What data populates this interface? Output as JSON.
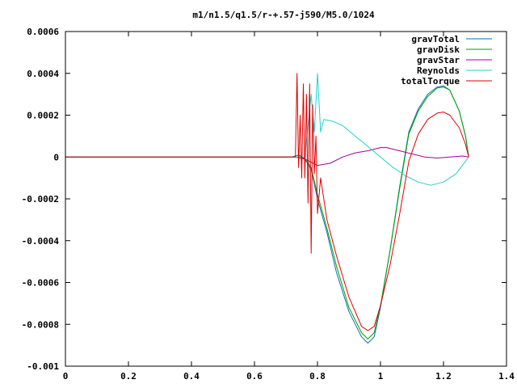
{
  "chart_data": {
    "type": "line",
    "title": "m1/n1.5/q1.5/r-+.57-j590/M5.0/1024",
    "xlabel": "",
    "ylabel": "",
    "xlim": [
      0,
      1.4
    ],
    "ylim": [
      -0.001,
      0.0006
    ],
    "grid": false,
    "legend_position": "top-right",
    "x_ticks": [
      "0",
      "0.2",
      "0.4",
      "0.6",
      "0.8",
      "1",
      "1.2",
      "1.4"
    ],
    "y_ticks": [
      "0.0006",
      "0.0004",
      "0.0002",
      "0",
      "-0.0002",
      "-0.0004",
      "-0.0006",
      "-0.0008",
      "-0.001"
    ],
    "series": [
      {
        "name": "gravTotal",
        "color": "#0072bd",
        "points": [
          [
            0,
            0
          ],
          [
            0.72,
            0
          ],
          [
            0.74,
            1e-05
          ],
          [
            0.76,
            -1e-05
          ],
          [
            0.78,
            -6e-05
          ],
          [
            0.8,
            -0.0002
          ],
          [
            0.83,
            -0.00036
          ],
          [
            0.86,
            -0.00055
          ],
          [
            0.9,
            -0.00074
          ],
          [
            0.94,
            -0.00086
          ],
          [
            0.96,
            -0.00089
          ],
          [
            0.98,
            -0.00086
          ],
          [
            1.0,
            -0.00072
          ],
          [
            1.03,
            -0.00045
          ],
          [
            1.06,
            -0.00015
          ],
          [
            1.09,
            0.00012
          ],
          [
            1.12,
            0.00023
          ],
          [
            1.15,
            0.0003
          ],
          [
            1.18,
            0.000335
          ],
          [
            1.2,
            0.00034
          ],
          [
            1.22,
            0.00032
          ],
          [
            1.25,
            0.00022
          ],
          [
            1.27,
            0.0001
          ],
          [
            1.28,
            0
          ]
        ]
      },
      {
        "name": "gravDisk",
        "color": "#00a000",
        "points": [
          [
            0,
            0
          ],
          [
            0.72,
            0
          ],
          [
            0.74,
            1e-05
          ],
          [
            0.76,
            -1e-05
          ],
          [
            0.78,
            -5e-05
          ],
          [
            0.8,
            -0.00018
          ],
          [
            0.83,
            -0.00034
          ],
          [
            0.86,
            -0.00052
          ],
          [
            0.9,
            -0.00072
          ],
          [
            0.94,
            -0.00084
          ],
          [
            0.96,
            -0.00087
          ],
          [
            0.98,
            -0.00084
          ],
          [
            1.0,
            -0.00071
          ],
          [
            1.03,
            -0.00045
          ],
          [
            1.06,
            -0.00016
          ],
          [
            1.09,
            0.00011
          ],
          [
            1.12,
            0.00022
          ],
          [
            1.15,
            0.00029
          ],
          [
            1.18,
            0.00033
          ],
          [
            1.2,
            0.000335
          ],
          [
            1.22,
            0.00032
          ],
          [
            1.25,
            0.00022
          ],
          [
            1.27,
            0.0001
          ],
          [
            1.28,
            0
          ]
        ]
      },
      {
        "name": "gravStar",
        "color": "#a000a0",
        "points": [
          [
            0,
            0
          ],
          [
            0.73,
            0
          ],
          [
            0.76,
            -1e-05
          ],
          [
            0.8,
            -4e-05
          ],
          [
            0.84,
            -3e-05
          ],
          [
            0.88,
            0
          ],
          [
            0.92,
            2e-05
          ],
          [
            0.96,
            3e-05
          ],
          [
            1.0,
            4.5e-05
          ],
          [
            1.02,
            4.5e-05
          ],
          [
            1.06,
            3e-05
          ],
          [
            1.1,
            1.5e-05
          ],
          [
            1.14,
            0
          ],
          [
            1.18,
            -5e-06
          ],
          [
            1.22,
            0
          ],
          [
            1.26,
            5e-06
          ],
          [
            1.28,
            0
          ]
        ]
      },
      {
        "name": "Reynolds",
        "color": "#20d0d0",
        "points": [
          [
            0,
            0
          ],
          [
            0.76,
            0
          ],
          [
            0.78,
            0.0003
          ],
          [
            0.79,
            0.00012
          ],
          [
            0.8,
            0.0004
          ],
          [
            0.81,
            0.00012
          ],
          [
            0.82,
            0.00018
          ],
          [
            0.85,
            0.00017
          ],
          [
            0.88,
            0.00015
          ],
          [
            0.92,
            0.0001
          ],
          [
            0.96,
            5e-05
          ],
          [
            1.0,
            0
          ],
          [
            1.04,
            -5e-05
          ],
          [
            1.08,
            -9e-05
          ],
          [
            1.12,
            -0.00012
          ],
          [
            1.16,
            -0.000135
          ],
          [
            1.2,
            -0.00012
          ],
          [
            1.24,
            -8e-05
          ],
          [
            1.27,
            -2e-05
          ],
          [
            1.28,
            0
          ]
        ]
      },
      {
        "name": "totalTorque",
        "color": "#e00000",
        "points": [
          [
            0,
            0
          ],
          [
            0.73,
            0
          ],
          [
            0.735,
            0.0004
          ],
          [
            0.74,
            -5e-05
          ],
          [
            0.745,
            0.0002
          ],
          [
            0.75,
            -0.0001
          ],
          [
            0.755,
            0.00035
          ],
          [
            0.76,
            -0.0001
          ],
          [
            0.765,
            0.0003
          ],
          [
            0.77,
            -0.00022
          ],
          [
            0.775,
            0.00035
          ],
          [
            0.78,
            -0.00046
          ],
          [
            0.785,
            0.00025
          ],
          [
            0.79,
            -8e-05
          ],
          [
            0.795,
            0.0001
          ],
          [
            0.8,
            -0.00027
          ],
          [
            0.81,
            -0.0001
          ],
          [
            0.83,
            -0.0003
          ],
          [
            0.86,
            -0.00047
          ],
          [
            0.9,
            -0.00067
          ],
          [
            0.94,
            -0.00081
          ],
          [
            0.96,
            -0.00083
          ],
          [
            0.98,
            -0.00081
          ],
          [
            1.0,
            -0.00071
          ],
          [
            1.03,
            -0.00052
          ],
          [
            1.06,
            -0.00028
          ],
          [
            1.09,
            -2e-05
          ],
          [
            1.12,
            0.00011
          ],
          [
            1.15,
            0.00018
          ],
          [
            1.18,
            0.00021
          ],
          [
            1.2,
            0.000215
          ],
          [
            1.22,
            0.0002
          ],
          [
            1.25,
            0.00014
          ],
          [
            1.27,
            6e-05
          ],
          [
            1.28,
            0
          ]
        ]
      }
    ]
  }
}
